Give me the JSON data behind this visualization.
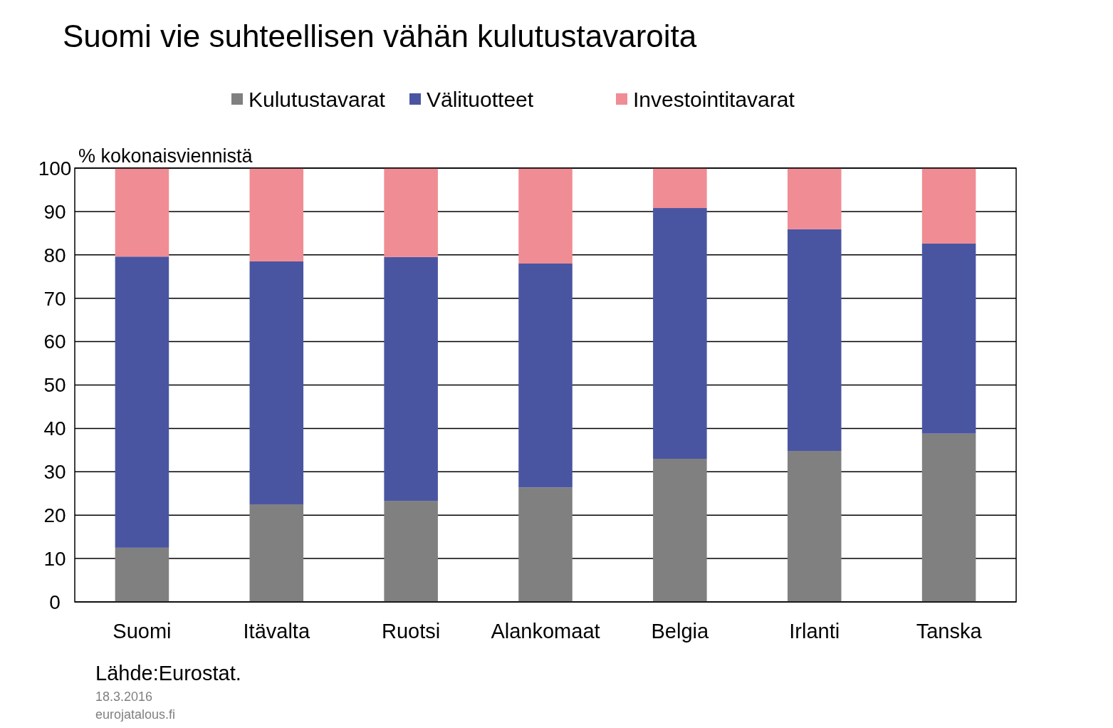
{
  "chart_data": {
    "type": "bar",
    "title": "Suomi vie suhteellisen vähän kulutustavaroita",
    "ylabel": "% kokonaisviennistä",
    "categories": [
      "Suomi",
      "Itävalta",
      "Ruotsi",
      "Alankomaat",
      "Belgia",
      "Irlanti",
      "Tanska"
    ],
    "series": [
      {
        "name": "Kulutustavarat",
        "color": "#808080",
        "values": [
          12.5,
          22.5,
          23.3,
          26.4,
          33.0,
          34.8,
          38.8
        ]
      },
      {
        "name": "Välituotteet",
        "color": "#4a55a2",
        "values": [
          67.1,
          56.0,
          56.2,
          51.6,
          57.8,
          51.1,
          43.8
        ]
      },
      {
        "name": "Investointitavarat",
        "color": "#f08c94",
        "values": [
          20.4,
          21.5,
          20.5,
          22.0,
          9.2,
          14.1,
          17.4
        ]
      }
    ],
    "stacked": true,
    "ylim": [
      0,
      100
    ],
    "yticks": [
      0,
      10,
      20,
      30,
      40,
      50,
      60,
      70,
      80,
      90,
      100
    ],
    "grid": "y",
    "legend": "top",
    "annotations": [
      "Lähde:Eurostat.",
      "18.3.2016",
      "eurojatalous.fi"
    ]
  }
}
